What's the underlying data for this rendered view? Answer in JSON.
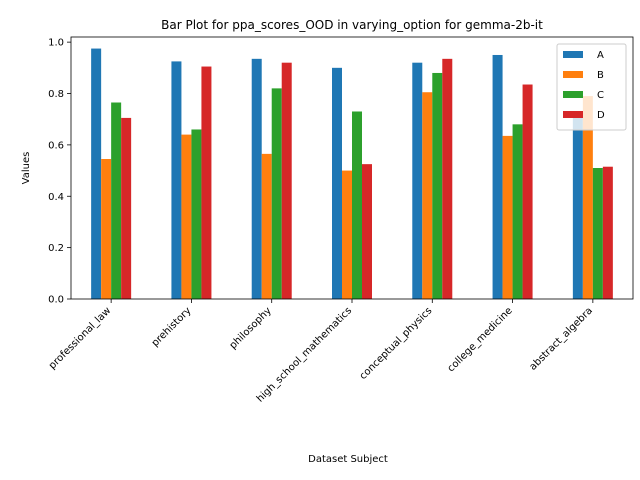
{
  "chart_data": {
    "type": "bar",
    "title": "Bar Plot for ppa_scores_OOD in varying_option for gemma-2b-it",
    "xlabel": "Dataset Subject",
    "ylabel": "Values",
    "ylim": [
      0,
      1.02
    ],
    "yticks": [
      "0.0",
      "0.2",
      "0.4",
      "0.6",
      "0.8",
      "1.0"
    ],
    "categories": [
      "professional_law",
      "prehistory",
      "philosophy",
      "high_school_mathematics",
      "conceptual_physics",
      "college_medicine",
      "abstract_algebra"
    ],
    "series": [
      {
        "name": "A",
        "color": "#1f77b4",
        "values": [
          0.975,
          0.925,
          0.935,
          0.9,
          0.92,
          0.95,
          0.72
        ]
      },
      {
        "name": "B",
        "color": "#ff7f0e",
        "values": [
          0.545,
          0.64,
          0.565,
          0.5,
          0.805,
          0.635,
          0.79
        ]
      },
      {
        "name": "C",
        "color": "#2ca02c",
        "values": [
          0.765,
          0.66,
          0.82,
          0.73,
          0.88,
          0.68,
          0.51
        ]
      },
      {
        "name": "D",
        "color": "#d62728",
        "values": [
          0.705,
          0.905,
          0.92,
          0.525,
          0.935,
          0.835,
          0.515
        ]
      }
    ],
    "legend_position": "top-right",
    "grid": false
  }
}
